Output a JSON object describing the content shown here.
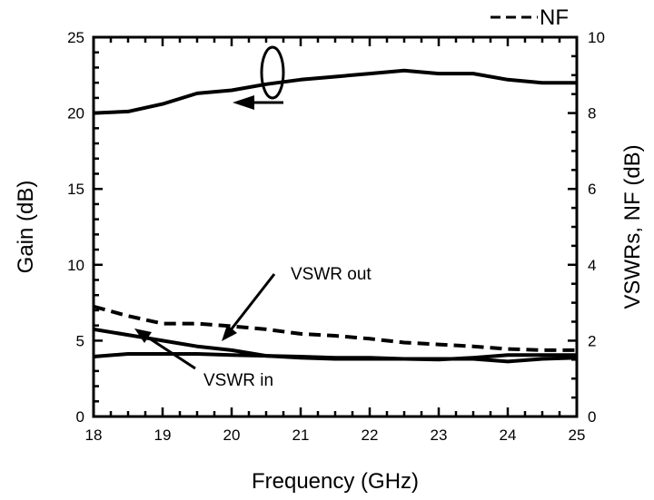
{
  "chart_data": {
    "type": "line",
    "xlabel": "Frequency (GHz)",
    "ylabel_left": "Gain (dB)",
    "ylabel_right": "VSWRs, NF (dB)",
    "xlim": [
      18,
      25
    ],
    "ylim_left": [
      0,
      25
    ],
    "ylim_right": [
      0,
      10
    ],
    "x_ticks": [
      18,
      19,
      20,
      21,
      22,
      23,
      24,
      25
    ],
    "y_ticks_left": [
      0,
      5,
      10,
      15,
      20,
      25
    ],
    "y_ticks_right": [
      0,
      2,
      4,
      6,
      8,
      10
    ],
    "grid": false,
    "legend": {
      "position": "top-right",
      "entries": [
        {
          "label": "NF",
          "style": "dashed"
        }
      ]
    },
    "annotations": [
      {
        "text": "VSWR out",
        "series": "VSWR out"
      },
      {
        "text": "VSWR in",
        "series": "VSWR in"
      }
    ],
    "series": [
      {
        "name": "",
        "axis": "left",
        "style": "solid",
        "x": [
          18,
          18.5,
          19,
          19.5,
          20,
          20.5,
          21,
          21.5,
          22,
          22.5,
          23,
          23.5,
          24,
          24.5,
          25
        ],
        "y": [
          20.0,
          20.1,
          20.6,
          21.3,
          21.5,
          21.9,
          22.2,
          22.4,
          22.6,
          22.8,
          22.6,
          22.6,
          22.2,
          22.0,
          22.0
        ]
      },
      {
        "name": "NF",
        "axis": "right",
        "style": "dashed",
        "x": [
          18,
          18.5,
          19,
          19.5,
          20,
          20.5,
          21,
          21.5,
          22,
          22.5,
          23,
          23.5,
          24,
          24.5,
          25
        ],
        "y": [
          2.9,
          2.65,
          2.45,
          2.45,
          2.38,
          2.3,
          2.18,
          2.13,
          2.05,
          1.95,
          1.9,
          1.85,
          1.78,
          1.75,
          1.75
        ]
      },
      {
        "name": "VSWR out",
        "axis": "right",
        "style": "solid",
        "x": [
          18,
          18.5,
          19,
          19.5,
          20,
          20.5,
          21,
          21.5,
          22,
          22.5,
          23,
          23.5,
          24,
          24.5,
          25
        ],
        "y": [
          2.3,
          2.15,
          2.0,
          1.85,
          1.75,
          1.6,
          1.55,
          1.52,
          1.52,
          1.52,
          1.5,
          1.55,
          1.62,
          1.62,
          1.62
        ]
      },
      {
        "name": "VSWR in",
        "axis": "right",
        "style": "solid",
        "x": [
          18,
          18.5,
          19,
          19.5,
          20,
          20.5,
          21,
          21.5,
          22,
          22.5,
          23,
          23.5,
          24,
          24.5,
          25
        ],
        "y": [
          1.58,
          1.65,
          1.65,
          1.65,
          1.62,
          1.6,
          1.58,
          1.55,
          1.55,
          1.52,
          1.52,
          1.52,
          1.45,
          1.52,
          1.55
        ]
      }
    ]
  }
}
